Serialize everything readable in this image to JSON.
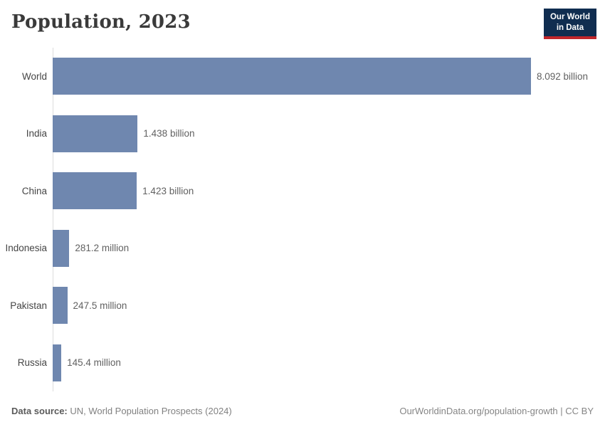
{
  "header": {
    "title": "Population, 2023",
    "logo": {
      "line1": "Our World",
      "line2": "in Data",
      "bg_color": "#102d50",
      "accent_color": "#c0262b"
    }
  },
  "chart_data": {
    "type": "bar",
    "orientation": "horizontal",
    "title": "Population, 2023",
    "categories": [
      "World",
      "India",
      "China",
      "Indonesia",
      "Pakistan",
      "Russia"
    ],
    "values_millions": [
      8092,
      1438,
      1423,
      281.2,
      247.5,
      145.4
    ],
    "value_labels": [
      "8.092 billion",
      "1.438 billion",
      "1.423 billion",
      "281.2 million",
      "247.5 million",
      "145.4 million"
    ],
    "xlim_millions": [
      0,
      8092
    ],
    "bar_color": "#6f87af",
    "axis_color": "#dcdcdc",
    "grid": false,
    "legend": false
  },
  "footer": {
    "source_label": "Data source:",
    "source_text": " UN, World Population Prospects (2024)",
    "attribution": "OurWorldinData.org/population-growth | CC BY"
  }
}
